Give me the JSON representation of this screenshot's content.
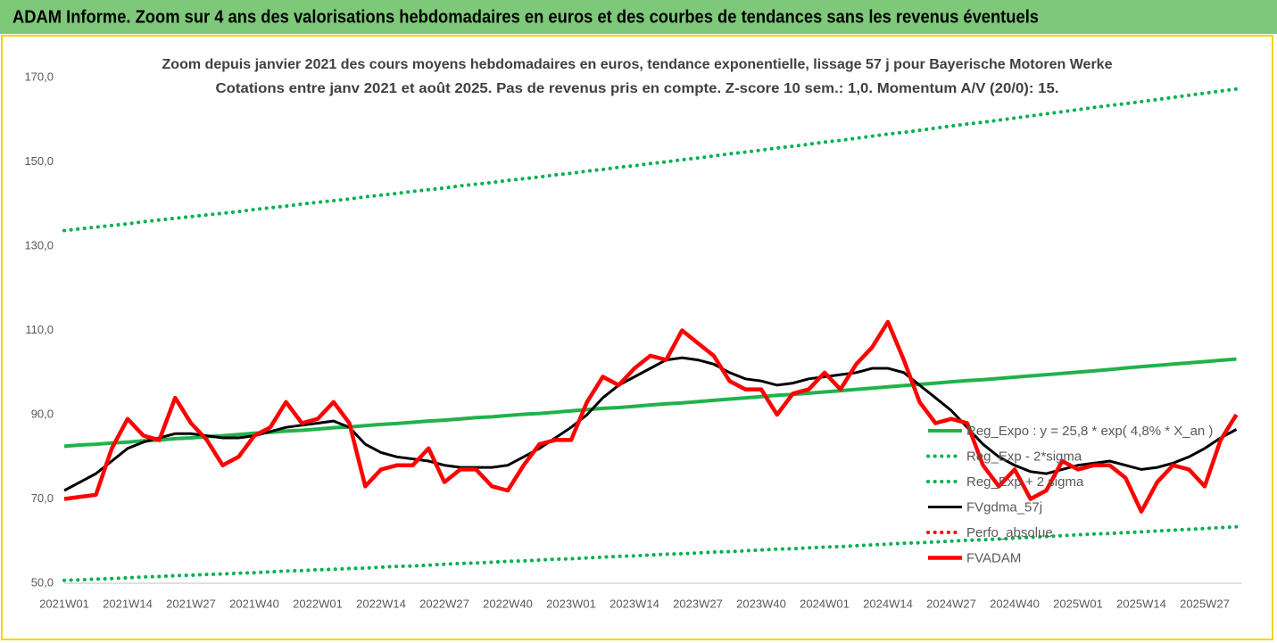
{
  "page_title": "ADAM Informe. Zoom sur 4 ans des valorisations hebdomadaires en euros et des courbes de tendances sans les revenus éventuels",
  "chart_data": {
    "type": "line",
    "title": "Zoom depuis janvier 2021 des cours moyens hebdomadaires en euros, tendance exponentielle, lissage 57 j pour Bayerische Motoren Werke",
    "subtitle": "Cotations entre janv 2021 et août 2025. Pas de revenus pris en compte. Z-score 10 sem.: 1,0. Momentum A/V (20/0): 15.",
    "categories": [
      "2021W01",
      null,
      null,
      null,
      "2021W14",
      null,
      null,
      null,
      "2021W27",
      null,
      null,
      null,
      "2021W40",
      null,
      null,
      null,
      "2022W01",
      null,
      null,
      null,
      "2022W14",
      null,
      null,
      null,
      "2022W27",
      null,
      null,
      null,
      "2022W40",
      null,
      null,
      null,
      "2023W01",
      null,
      null,
      null,
      "2023W14",
      null,
      null,
      null,
      "2023W27",
      null,
      null,
      null,
      "2023W40",
      null,
      null,
      null,
      "2024W01",
      null,
      null,
      null,
      "2024W14",
      null,
      null,
      null,
      "2024W27",
      null,
      null,
      null,
      "2024W40",
      null,
      null,
      null,
      "2025W01",
      null,
      null,
      null,
      "2025W14",
      null,
      null,
      null,
      "2025W27",
      null,
      null
    ],
    "ylim": [
      50,
      170
    ],
    "yticks": [
      {
        "value": 50,
        "label": "50,0"
      },
      {
        "value": 70,
        "label": "70,0"
      },
      {
        "value": 90,
        "label": "90,0"
      },
      {
        "value": 110,
        "label": "110,0"
      },
      {
        "value": 130,
        "label": "130,0"
      },
      {
        "value": 150,
        "label": "150,0"
      },
      {
        "value": 170,
        "label": "170,0"
      }
    ],
    "grid": false,
    "legend": "lower-right",
    "series": [
      {
        "name": "Reg_Expo : y = 25,8 * exp( 4,8% *  X_an )",
        "color": "#21b24b",
        "style": "solid",
        "values": [
          82.5,
          82.8,
          83.0,
          83.3,
          83.5,
          83.8,
          84.0,
          84.3,
          84.5,
          84.8,
          85.0,
          85.3,
          85.6,
          85.8,
          86.1,
          86.3,
          86.6,
          86.9,
          87.1,
          87.4,
          87.7,
          87.9,
          88.2,
          88.5,
          88.7,
          89.0,
          89.3,
          89.5,
          89.8,
          90.1,
          90.3,
          90.6,
          90.9,
          91.2,
          91.5,
          91.7,
          92.0,
          92.3,
          92.6,
          92.8,
          93.1,
          93.4,
          93.7,
          94.0,
          94.3,
          94.6,
          94.8,
          95.1,
          95.4,
          95.7,
          96.0,
          96.3,
          96.6,
          96.9,
          97.2,
          97.5,
          97.8,
          98.1,
          98.3,
          98.6,
          98.9,
          99.2,
          99.5,
          99.8,
          100.1,
          100.4,
          100.7,
          101.1,
          101.4,
          101.7,
          102.0,
          102.3,
          102.6,
          102.9,
          103.2
        ]
      },
      {
        "name": "Reg_Exp - 2*sigma",
        "color": "#00b050",
        "style": "dotted",
        "values": [
          50.7,
          50.8,
          51.0,
          51.1,
          51.3,
          51.5,
          51.6,
          51.8,
          51.9,
          52.1,
          52.2,
          52.4,
          52.5,
          52.7,
          52.9,
          53.0,
          53.2,
          53.3,
          53.5,
          53.6,
          53.8,
          54.0,
          54.1,
          54.3,
          54.5,
          54.7,
          54.8,
          55.0,
          55.2,
          55.3,
          55.5,
          55.7,
          55.8,
          56.0,
          56.2,
          56.4,
          56.5,
          56.7,
          56.9,
          57.0,
          57.2,
          57.4,
          57.5,
          57.7,
          57.9,
          58.1,
          58.2,
          58.4,
          58.6,
          58.7,
          58.9,
          59.1,
          59.3,
          59.5,
          59.6,
          59.8,
          60.0,
          60.2,
          60.3,
          60.5,
          60.7,
          60.9,
          61.1,
          61.3,
          61.5,
          61.7,
          61.8,
          62.0,
          62.2,
          62.4,
          62.6,
          62.8,
          63.0,
          63.2,
          63.4
        ]
      },
      {
        "name": "Reg_Exp + 2 sigma",
        "color": "#00b050",
        "style": "dotted",
        "values": [
          133.7,
          134.1,
          134.5,
          134.9,
          135.3,
          135.8,
          136.2,
          136.6,
          137.0,
          137.4,
          137.8,
          138.2,
          138.7,
          139.1,
          139.5,
          140.0,
          140.4,
          140.8,
          141.2,
          141.7,
          142.1,
          142.5,
          143.0,
          143.4,
          143.8,
          144.3,
          144.7,
          145.1,
          145.6,
          146.0,
          146.4,
          146.9,
          147.3,
          147.8,
          148.2,
          148.7,
          149.1,
          149.6,
          150.0,
          150.5,
          150.9,
          151.4,
          151.9,
          152.3,
          152.8,
          153.3,
          153.7,
          154.2,
          154.7,
          155.1,
          155.6,
          156.1,
          156.6,
          157.0,
          157.5,
          158.0,
          158.5,
          159.0,
          159.4,
          159.9,
          160.4,
          160.9,
          161.4,
          161.9,
          162.4,
          162.9,
          163.4,
          163.8,
          164.3,
          164.8,
          165.3,
          165.8,
          166.3,
          166.8,
          167.3
        ]
      },
      {
        "name": "FVgdma_57j",
        "color": "#000000",
        "style": "solid",
        "values": [
          72,
          74,
          76,
          79,
          82,
          83.5,
          84.5,
          85.5,
          85.5,
          85,
          84.5,
          84.5,
          85,
          86,
          87,
          87.5,
          88,
          88.5,
          87,
          83,
          81,
          80,
          79.5,
          79,
          78,
          77.5,
          77.5,
          77.5,
          78,
          80,
          82,
          84.5,
          87,
          90,
          94,
          97,
          99,
          101,
          103,
          103.5,
          103,
          102,
          100,
          98.5,
          98,
          97,
          97.5,
          98.5,
          99,
          99.5,
          100,
          101,
          101,
          100,
          97,
          94,
          91,
          87,
          83,
          80,
          78,
          76.5,
          76,
          77,
          78,
          78.5,
          79,
          78,
          77,
          77.5,
          78.5,
          80,
          82,
          84.5,
          86.5
        ]
      },
      {
        "name": "Perfo_absolue",
        "color": "#ff0000",
        "style": "dotted",
        "values": [
          null,
          null,
          null,
          null,
          null,
          null,
          null,
          null,
          null,
          null,
          null,
          null,
          null,
          null,
          null,
          null,
          null,
          null,
          null,
          null,
          null,
          null,
          null,
          null,
          null,
          null,
          null,
          null,
          null,
          null,
          null,
          null,
          null,
          null,
          null,
          null,
          null,
          null,
          null,
          null,
          null,
          null,
          null,
          null,
          null,
          null,
          null,
          null,
          null,
          null,
          null,
          null,
          null,
          null,
          null,
          null,
          null,
          null,
          null,
          null,
          null,
          null,
          null,
          null,
          null,
          null,
          null,
          null,
          null,
          null,
          null,
          null,
          null,
          null,
          null
        ]
      },
      {
        "name": "FVADAM",
        "color": "#ff0000",
        "style": "thick",
        "values": [
          70,
          70.5,
          71,
          82,
          89,
          85,
          84,
          94,
          88,
          84,
          78,
          80,
          85,
          87,
          93,
          88,
          89,
          93,
          88,
          73,
          77,
          78,
          78,
          82,
          74,
          77,
          77,
          73,
          72,
          78,
          83,
          84,
          84,
          93,
          99,
          97,
          101,
          104,
          103,
          110,
          107,
          104,
          98,
          96,
          96,
          90,
          95,
          96,
          100,
          96,
          102,
          106,
          112,
          103,
          93,
          88,
          89,
          88,
          78,
          73,
          77,
          70,
          72,
          79,
          77,
          78,
          78,
          75,
          67,
          74,
          78,
          77,
          73,
          84,
          90
        ]
      }
    ]
  }
}
